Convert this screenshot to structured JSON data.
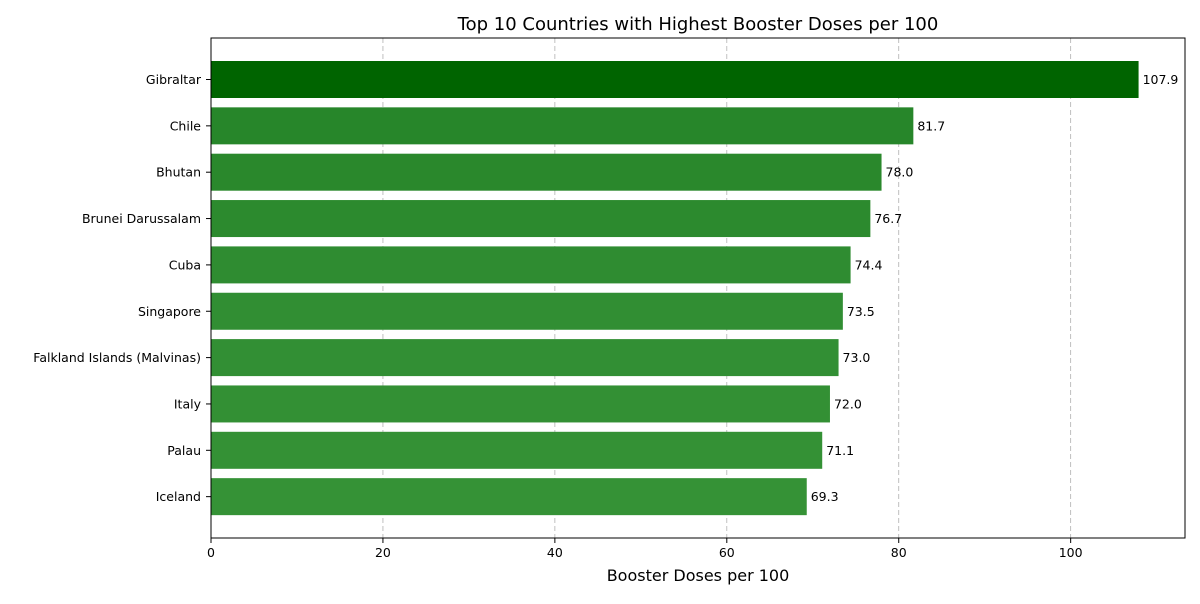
{
  "chart_data": {
    "type": "bar",
    "orientation": "horizontal",
    "title": "Top 10 Countries with Highest Booster Doses per 100",
    "xlabel": "Booster Doses per 100",
    "ylabel": "",
    "categories": [
      "Gibraltar",
      "Chile",
      "Bhutan",
      "Brunei Darussalam",
      "Cuba",
      "Singapore",
      "Falkland Islands (Malvinas)",
      "Italy",
      "Palau",
      "Iceland"
    ],
    "values": [
      107.9,
      81.7,
      78.0,
      76.7,
      74.4,
      73.5,
      73.0,
      72.0,
      71.1,
      69.3
    ],
    "value_labels": [
      "107.9",
      "81.7",
      "78.0",
      "76.7",
      "74.4",
      "73.5",
      "73.0",
      "72.0",
      "71.1",
      "69.3"
    ],
    "bar_colors": [
      "#006400",
      "#27862a",
      "#2a882c",
      "#2c8a2e",
      "#2f8c31",
      "#318e33",
      "#328f34",
      "#339034",
      "#349135",
      "#359236"
    ],
    "xlim": [
      0,
      113.3
    ],
    "xticks": [
      0,
      20,
      40,
      60,
      80,
      100
    ],
    "xtick_labels": [
      "0",
      "20",
      "40",
      "60",
      "80",
      "100"
    ],
    "grid": "x-axis dashed",
    "legend": "none"
  }
}
